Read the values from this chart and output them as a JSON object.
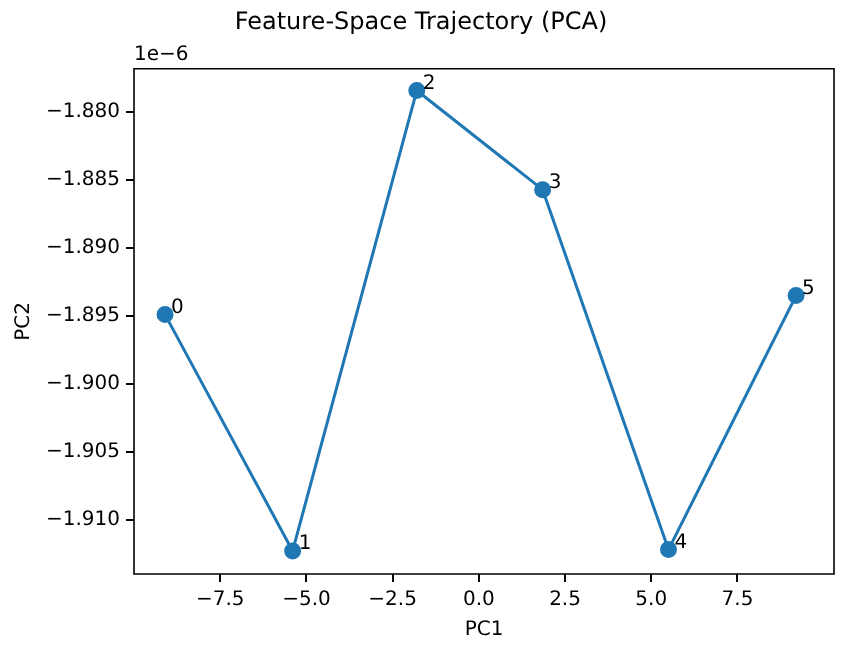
{
  "chart_data": {
    "type": "line",
    "title": "Feature-Space Trajectory (PCA)",
    "xlabel": "PC1",
    "ylabel": "PC2",
    "marker": "circle",
    "grid": false,
    "legend": false,
    "series": [
      {
        "color": "#1f77b4",
        "x": [
          -9.1,
          -5.4,
          -1.8,
          1.85,
          5.5,
          9.2
        ],
        "values": [
          -1.8949,
          -1.9123,
          -1.8784,
          -1.8857,
          -1.9122,
          -1.8935
        ]
      }
    ],
    "xlim": [
      -10.0,
      10.3
    ],
    "xticks": [
      {
        "value": -7.5,
        "label": "−7.5"
      },
      {
        "value": -5,
        "label": "−5.0"
      },
      {
        "value": -2.5,
        "label": "−2.5"
      },
      {
        "value": 0,
        "label": "0.0"
      },
      {
        "value": 2.5,
        "label": "2.5"
      },
      {
        "value": 5,
        "label": "5.0"
      },
      {
        "value": 7.5,
        "label": "7.5"
      }
    ],
    "ylim": [
      -1.914,
      -1.8768
    ],
    "yticks": [
      {
        "value": -1.91,
        "label": "−1.910"
      },
      {
        "value": -1.905,
        "label": "−1.905"
      },
      {
        "value": -1.9,
        "label": "−1.900"
      },
      {
        "value": -1.895,
        "label": "−1.895"
      },
      {
        "value": -1.89,
        "label": "−1.890"
      },
      {
        "value": -1.885,
        "label": "−1.885"
      },
      {
        "value": -1.88,
        "label": "−1.880"
      }
    ],
    "annotations": [
      "1e−6",
      {
        "text": "0",
        "x": -9.1,
        "y": -1.8949
      },
      {
        "text": "1",
        "x": -5.4,
        "y": -1.9123
      },
      {
        "text": "2",
        "x": -1.8,
        "y": -1.8784
      },
      {
        "text": "3",
        "x": 1.85,
        "y": -1.8857
      },
      {
        "text": "4",
        "x": 5.5,
        "y": -1.9122
      },
      {
        "text": "5",
        "x": 9.2,
        "y": -1.8935
      }
    ]
  }
}
